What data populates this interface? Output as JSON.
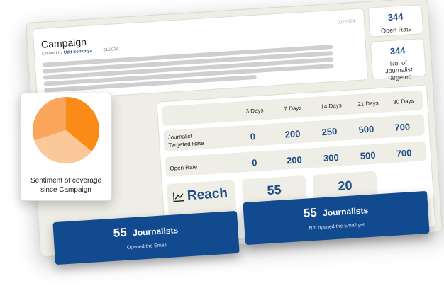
{
  "campaign": {
    "title": "Campaign",
    "date_top": "01/2024",
    "created_by_prefix": "Created by",
    "author": "Udit Sonkhiya",
    "date": "01/2024"
  },
  "metrics": [
    {
      "value": "344",
      "label": "Open Rate"
    },
    {
      "value": "344",
      "label": "No. of Journalist Targeted"
    }
  ],
  "table": {
    "columns": [
      "3 Days",
      "7 Days",
      "14 Days",
      "21 Days",
      "30 Days"
    ],
    "rows": [
      {
        "label": "Journalist Targeted Rate",
        "values": [
          "0",
          "200",
          "250",
          "500",
          "700"
        ]
      },
      {
        "label": "Open Rate",
        "values": [
          "0",
          "200",
          "300",
          "500",
          "700"
        ]
      }
    ]
  },
  "reach": {
    "label": "Reach",
    "icon": "chart-line-icon",
    "value1": "55",
    "value2": "20"
  },
  "sentiment": {
    "label_line1": "Sentiment of coverage",
    "label_line2": "since Campaign",
    "slices": [
      {
        "fraction": 0.36,
        "color": "#fa8b16"
      },
      {
        "fraction": 0.34,
        "color": "#fbc89a"
      },
      {
        "fraction": 0.3,
        "color": "#fba55a"
      }
    ]
  },
  "opened": {
    "count": "55",
    "word": "Journalists",
    "caption": "Opened the Email"
  },
  "not_opened": {
    "count": "55",
    "word": "Journalists",
    "caption": "Not opened the Email yet"
  }
}
